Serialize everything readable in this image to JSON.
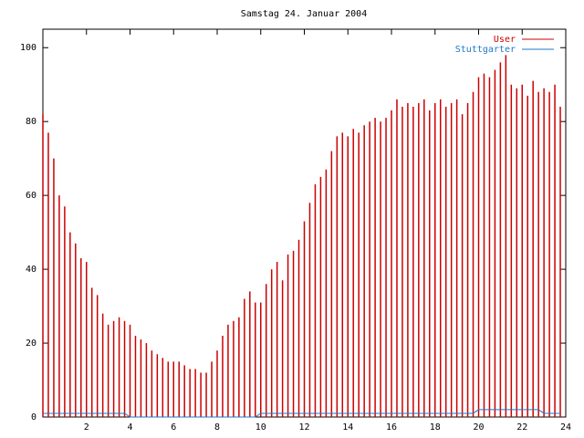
{
  "chart_data": {
    "type": "impulse",
    "title": "Samstag 24. Januar 2004",
    "x": [
      0,
      0.25,
      0.5,
      0.75,
      1,
      1.25,
      1.5,
      1.75,
      2,
      2.25,
      2.5,
      2.75,
      3,
      3.25,
      3.5,
      3.75,
      4,
      4.25,
      4.5,
      4.75,
      5,
      5.25,
      5.5,
      5.75,
      6,
      6.25,
      6.5,
      6.75,
      7,
      7.25,
      7.5,
      7.75,
      8,
      8.25,
      8.5,
      8.75,
      9,
      9.25,
      9.5,
      9.75,
      10,
      10.25,
      10.5,
      10.75,
      11,
      11.25,
      11.5,
      11.75,
      12,
      12.25,
      12.5,
      12.75,
      13,
      13.25,
      13.5,
      13.75,
      14,
      14.25,
      14.5,
      14.75,
      15,
      15.25,
      15.5,
      15.75,
      16,
      16.25,
      16.5,
      16.75,
      17,
      17.25,
      17.5,
      17.75,
      18,
      18.25,
      18.5,
      18.75,
      19,
      19.25,
      19.5,
      19.75,
      20,
      20.25,
      20.5,
      20.75,
      21,
      21.25,
      21.5,
      21.75,
      22,
      22.25,
      22.5,
      22.75,
      23,
      23.25,
      23.5,
      23.75
    ],
    "series": [
      {
        "name": "User",
        "color": "#cc0000",
        "style": "impulses",
        "values": [
          82,
          77,
          70,
          60,
          57,
          50,
          47,
          43,
          42,
          35,
          33,
          28,
          25,
          26,
          27,
          26,
          25,
          22,
          21,
          20,
          18,
          17,
          16,
          15,
          15,
          15,
          14,
          13,
          13,
          12,
          12,
          15,
          18,
          22,
          25,
          26,
          27,
          32,
          34,
          31,
          31,
          36,
          40,
          42,
          37,
          44,
          45,
          48,
          53,
          58,
          63,
          65,
          67,
          72,
          76,
          77,
          76,
          78,
          77,
          79,
          80,
          81,
          80,
          81,
          83,
          86,
          84,
          85,
          84,
          85,
          86,
          83,
          85,
          86,
          84,
          85,
          86,
          82,
          85,
          88,
          92,
          93,
          92,
          94,
          96,
          98,
          90,
          89,
          90,
          87,
          91,
          88,
          89,
          88,
          90,
          84
        ]
      },
      {
        "name": "Stuttgarter",
        "color": "#1e78c8",
        "style": "lines",
        "values": [
          1,
          1,
          1,
          1,
          1,
          1,
          1,
          1,
          1,
          1,
          1,
          1,
          1,
          1,
          1,
          1,
          0,
          0,
          0,
          0,
          0,
          0,
          0,
          0,
          0,
          0,
          0,
          0,
          0,
          0,
          0,
          0,
          0,
          0,
          0,
          0,
          0,
          0,
          0,
          0,
          1,
          1,
          1,
          1,
          1,
          1,
          1,
          1,
          1,
          1,
          1,
          1,
          1,
          1,
          1,
          1,
          1,
          1,
          1,
          1,
          1,
          1,
          1,
          1,
          1,
          1,
          1,
          1,
          1,
          1,
          1,
          1,
          1,
          1,
          1,
          1,
          1,
          1,
          1,
          1,
          2,
          2,
          2,
          2,
          2,
          2,
          2,
          2,
          2,
          2,
          2,
          2,
          1,
          1,
          1,
          1
        ]
      }
    ],
    "xlim": [
      0,
      24
    ],
    "xticks": [
      2,
      4,
      6,
      8,
      10,
      12,
      14,
      16,
      18,
      20,
      22,
      24
    ],
    "ylim": [
      0,
      105
    ],
    "yticks": [
      0,
      20,
      40,
      60,
      80,
      100
    ],
    "legend": "top-right"
  }
}
